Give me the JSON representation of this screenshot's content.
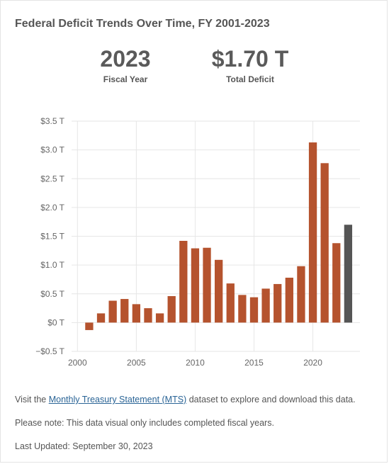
{
  "header": {
    "title": "Federal Deficit Trends Over Time, FY 2001-2023"
  },
  "stats": {
    "year_value": "2023",
    "year_label": "Fiscal Year",
    "deficit_value": "$1.70 T",
    "deficit_label": "Total Deficit"
  },
  "chart_data": {
    "type": "bar",
    "x": [
      2001,
      2002,
      2003,
      2004,
      2005,
      2006,
      2007,
      2008,
      2009,
      2010,
      2011,
      2012,
      2013,
      2014,
      2015,
      2016,
      2017,
      2018,
      2019,
      2020,
      2021,
      2022,
      2023
    ],
    "values": [
      -0.13,
      0.16,
      0.38,
      0.41,
      0.32,
      0.25,
      0.16,
      0.46,
      1.42,
      1.29,
      1.3,
      1.09,
      0.68,
      0.48,
      0.44,
      0.59,
      0.67,
      0.78,
      0.98,
      3.13,
      2.77,
      1.38,
      1.7
    ],
    "highlight_x": 2023,
    "ylim": [
      -0.5,
      3.5
    ],
    "xlim": [
      1999.5,
      2024
    ],
    "y_ticks": [
      -0.5,
      0,
      0.5,
      1.0,
      1.5,
      2.0,
      2.5,
      3.0,
      3.5
    ],
    "y_tick_labels": [
      "−$0.5 T",
      "$0 T",
      "$0.5 T",
      "$1.0 T",
      "$1.5 T",
      "$2.0 T",
      "$2.5 T",
      "$3.0 T",
      "$3.5 T"
    ],
    "x_ticks": [
      2000,
      2005,
      2010,
      2015,
      2020
    ],
    "x_tick_labels": [
      "2000",
      "2005",
      "2010",
      "2015",
      "2020"
    ],
    "colors": {
      "bar": "#b5532e",
      "highlight": "#555555",
      "grid": "#e6e6e6"
    },
    "grid": true
  },
  "footer": {
    "line1_prefix": "Visit the ",
    "line1_link": "Monthly Treasury Statement (MTS)",
    "line1_suffix": " dataset to explore and download this data.",
    "line2": "Please note: This data visual only includes completed fiscal years.",
    "line3": "Last Updated: September 30, 2023"
  }
}
